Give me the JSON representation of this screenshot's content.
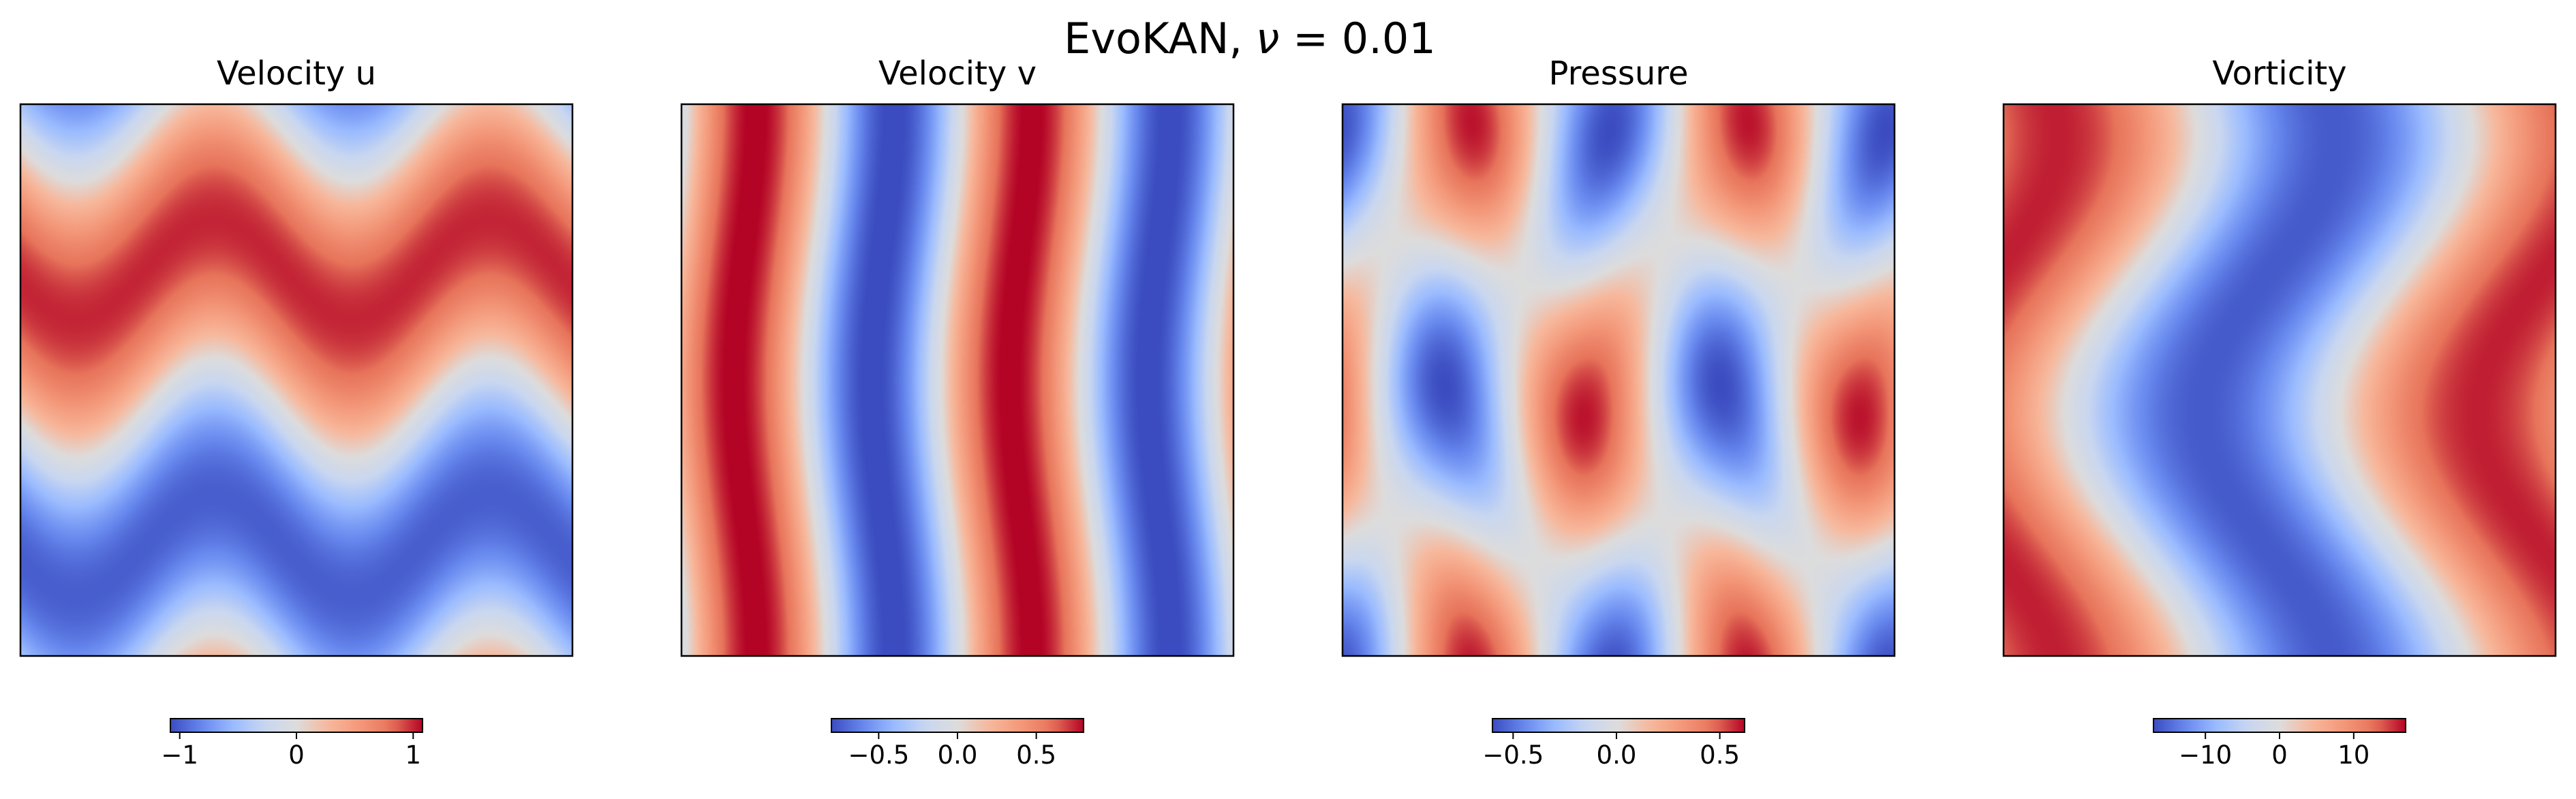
{
  "suptitle": {
    "prefix": "EvoKAN, ",
    "symbol": "ν",
    "equals": " = ",
    "value": "0.01"
  },
  "colormap": {
    "name": "coolwarm",
    "stops": [
      "#3b4cc0",
      "#6788ee",
      "#9abbff",
      "#c9d7f0",
      "#dddcdc",
      "#f7b89c",
      "#f4987a",
      "#e7745b",
      "#b40426"
    ]
  },
  "chart_data": [
    {
      "type": "heatmap",
      "title": "Velocity u",
      "field": "u",
      "vmin": -1.08,
      "vmax": 1.08,
      "ticks": [
        -1,
        0,
        1
      ],
      "tick_labels": [
        "−1",
        "0",
        "1"
      ],
      "xlabel": "",
      "ylabel": ""
    },
    {
      "type": "heatmap",
      "title": "Velocity v",
      "field": "v",
      "vmin": -0.8,
      "vmax": 0.8,
      "ticks": [
        -0.5,
        0.0,
        0.5
      ],
      "tick_labels": [
        "−0.5",
        "0.0",
        "0.5"
      ],
      "xlabel": "",
      "ylabel": ""
    },
    {
      "type": "heatmap",
      "title": "Pressure",
      "field": "p",
      "vmin": -0.6,
      "vmax": 0.62,
      "ticks": [
        -0.5,
        0.0,
        0.5
      ],
      "tick_labels": [
        "−0.5",
        "0.0",
        "0.5"
      ],
      "xlabel": "",
      "ylabel": ""
    },
    {
      "type": "heatmap",
      "title": "Vorticity",
      "field": "w",
      "vmin": -17,
      "vmax": 17,
      "ticks": [
        -10,
        0,
        10
      ],
      "tick_labels": [
        "−10",
        "0",
        "10"
      ],
      "xlabel": "",
      "ylabel": ""
    }
  ]
}
